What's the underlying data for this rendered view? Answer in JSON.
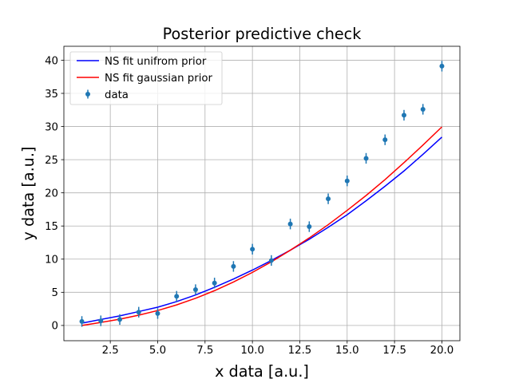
{
  "chart_data": {
    "type": "scatter",
    "title": "Posterior predictive check",
    "xlabel": "x data [a.u.]",
    "ylabel": "y data [a.u.]",
    "xlim": [
      0.05,
      20.95
    ],
    "ylim": [
      -2.3,
      42.1
    ],
    "xticks": [
      2.5,
      5.0,
      7.5,
      10.0,
      12.5,
      15.0,
      17.5,
      20.0
    ],
    "xtick_labels": [
      "2.5",
      "5.0",
      "7.5",
      "10.0",
      "12.5",
      "15.0",
      "17.5",
      "20.0"
    ],
    "yticks": [
      0,
      5,
      10,
      15,
      20,
      25,
      30,
      35,
      40
    ],
    "ytick_labels": [
      "0",
      "5",
      "10",
      "15",
      "20",
      "25",
      "30",
      "35",
      "40"
    ],
    "grid": true,
    "legend_position": "top-left",
    "series": [
      {
        "name": "NS fit unifrom prior",
        "kind": "line",
        "color": "#0000ff",
        "x": [
          1,
          2,
          3,
          4,
          5,
          6,
          7,
          8,
          9,
          10,
          11,
          12,
          13,
          14,
          15,
          16,
          17,
          18,
          19,
          20
        ],
        "y": [
          0.3,
          0.72,
          1.26,
          1.92,
          2.7,
          3.6,
          4.62,
          5.76,
          7.02,
          8.4,
          9.9,
          11.52,
          13.26,
          15.12,
          17.1,
          19.2,
          21.42,
          23.76,
          26.22,
          28.8
        ],
        "fit_y": [
          0.35,
          0.9,
          1.45,
          2.1,
          2.75,
          3.6,
          4.6,
          5.75,
          7.0,
          8.35,
          9.8,
          11.35,
          13.0,
          14.8,
          16.7,
          18.8,
          21.0,
          23.3,
          25.8,
          28.4
        ]
      },
      {
        "name": "NS fit gaussian prior",
        "kind": "line",
        "color": "#ff0000",
        "x": [
          1,
          2,
          3,
          4,
          5,
          6,
          7,
          8,
          9,
          10,
          11,
          12,
          13,
          14,
          15,
          16,
          17,
          18,
          19,
          20
        ],
        "y": [
          0.0,
          0.45,
          0.95,
          1.55,
          2.25,
          3.1,
          4.1,
          5.25,
          6.55,
          8.0,
          9.6,
          11.35,
          13.2,
          15.2,
          17.35,
          19.6,
          22.0,
          24.55,
          27.2,
          29.95
        ]
      },
      {
        "name": "data",
        "kind": "errorbar",
        "color": "#1f77b4",
        "x": [
          1,
          2,
          3,
          4,
          5,
          6,
          7,
          8,
          9,
          10,
          11,
          12,
          13,
          14,
          15,
          16,
          17,
          18,
          19,
          20
        ],
        "y": [
          0.6,
          0.7,
          0.9,
          2.0,
          1.8,
          4.4,
          5.4,
          6.4,
          8.9,
          11.5,
          9.8,
          15.3,
          14.9,
          19.1,
          21.8,
          25.2,
          28.0,
          31.7,
          32.6,
          39.1
        ],
        "yerr": [
          0.8,
          0.8,
          0.8,
          0.8,
          0.8,
          0.8,
          0.8,
          0.8,
          0.8,
          0.8,
          0.8,
          0.8,
          0.8,
          0.8,
          0.8,
          0.8,
          0.8,
          0.8,
          0.8,
          0.8
        ]
      }
    ]
  }
}
